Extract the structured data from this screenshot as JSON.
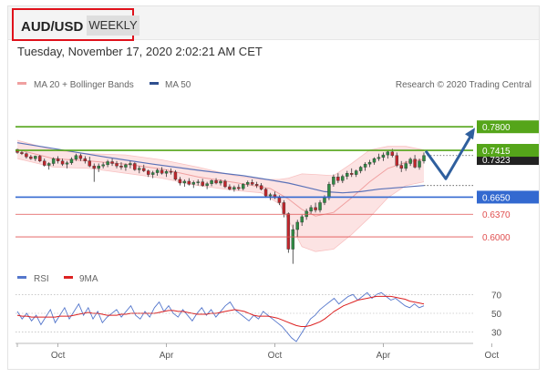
{
  "header": {
    "symbol": "AUD/USD",
    "timeframe": "WEEKLY"
  },
  "date_line": "Tuesday, November 17, 2020 2:02:21 AM CET",
  "legend": {
    "bollinger": "MA 20 + Bollinger Bands",
    "ma50": "MA 50",
    "rsi": "RSI",
    "ma9": "9MA"
  },
  "credit": "Research © 2020 Trading Central",
  "colors": {
    "bull": "#2f8a44",
    "bear": "#c0262c",
    "band": "#f8c2c2",
    "ma20": "#f0a0a0",
    "ma50": "#5b72b8",
    "green_level": "#55a51a",
    "blue_level": "#3369d0",
    "red_level": "#e05050",
    "arrow": "#2f5f9e",
    "rsi": "#5577cc",
    "ma9": "#dd2222"
  },
  "chart_data": [
    {
      "type": "candlestick",
      "title": "",
      "x_ticks": [
        "Oct",
        "Apr",
        "Oct",
        "Apr",
        "Oct"
      ],
      "ylim": [
        0.548,
        0.822
      ],
      "levels": [
        {
          "label": "0.7800",
          "value": 0.78,
          "kind": "resistance"
        },
        {
          "label": "0.7415",
          "value": 0.7415,
          "kind": "resistance"
        },
        {
          "label": "0.6650",
          "value": 0.665,
          "kind": "pivot"
        },
        {
          "label": "0.6370",
          "value": 0.637,
          "kind": "support"
        },
        {
          "label": "0.6000",
          "value": 0.6,
          "kind": "support"
        }
      ],
      "price_tag_partial": "0.7323",
      "scenario": "up from 0.7415 dip to 0.6950 then to 0.7800",
      "candles": [
        [
          0.743,
          0.744,
          0.736,
          0.738
        ],
        [
          0.738,
          0.742,
          0.734,
          0.736
        ],
        [
          0.736,
          0.738,
          0.728,
          0.731
        ],
        [
          0.731,
          0.734,
          0.726,
          0.728
        ],
        [
          0.728,
          0.733,
          0.724,
          0.732
        ],
        [
          0.732,
          0.734,
          0.722,
          0.724
        ],
        [
          0.724,
          0.728,
          0.715,
          0.717
        ],
        [
          0.717,
          0.722,
          0.71,
          0.72
        ],
        [
          0.72,
          0.73,
          0.716,
          0.728
        ],
        [
          0.728,
          0.732,
          0.72,
          0.724
        ],
        [
          0.724,
          0.728,
          0.716,
          0.719
        ],
        [
          0.719,
          0.724,
          0.712,
          0.721
        ],
        [
          0.721,
          0.73,
          0.718,
          0.727
        ],
        [
          0.727,
          0.736,
          0.724,
          0.733
        ],
        [
          0.733,
          0.736,
          0.724,
          0.728
        ],
        [
          0.728,
          0.732,
          0.72,
          0.724
        ],
        [
          0.724,
          0.731,
          0.714,
          0.716
        ],
        [
          0.716,
          0.72,
          0.69,
          0.712
        ],
        [
          0.712,
          0.72,
          0.706,
          0.716
        ],
        [
          0.716,
          0.722,
          0.712,
          0.718
        ],
        [
          0.718,
          0.726,
          0.714,
          0.723
        ],
        [
          0.723,
          0.728,
          0.716,
          0.72
        ],
        [
          0.72,
          0.724,
          0.712,
          0.716
        ],
        [
          0.716,
          0.722,
          0.71,
          0.714
        ],
        [
          0.714,
          0.72,
          0.708,
          0.718
        ],
        [
          0.718,
          0.724,
          0.712,
          0.72
        ],
        [
          0.72,
          0.722,
          0.708,
          0.71
        ],
        [
          0.71,
          0.716,
          0.704,
          0.712
        ],
        [
          0.712,
          0.718,
          0.706,
          0.708
        ],
        [
          0.708,
          0.71,
          0.698,
          0.702
        ],
        [
          0.702,
          0.708,
          0.696,
          0.705
        ],
        [
          0.705,
          0.712,
          0.7,
          0.709
        ],
        [
          0.709,
          0.714,
          0.702,
          0.704
        ],
        [
          0.704,
          0.71,
          0.698,
          0.707
        ],
        [
          0.707,
          0.712,
          0.702,
          0.706
        ],
        [
          0.706,
          0.709,
          0.692,
          0.694
        ],
        [
          0.694,
          0.698,
          0.684,
          0.688
        ],
        [
          0.688,
          0.694,
          0.682,
          0.691
        ],
        [
          0.691,
          0.696,
          0.684,
          0.686
        ],
        [
          0.686,
          0.692,
          0.68,
          0.689
        ],
        [
          0.689,
          0.694,
          0.684,
          0.69
        ],
        [
          0.69,
          0.695,
          0.682,
          0.684
        ],
        [
          0.684,
          0.69,
          0.678,
          0.687
        ],
        [
          0.687,
          0.694,
          0.683,
          0.692
        ],
        [
          0.692,
          0.696,
          0.686,
          0.688
        ],
        [
          0.688,
          0.694,
          0.684,
          0.691
        ],
        [
          0.691,
          0.694,
          0.68,
          0.682
        ],
        [
          0.682,
          0.686,
          0.676,
          0.678
        ],
        [
          0.678,
          0.684,
          0.674,
          0.681
        ],
        [
          0.681,
          0.686,
          0.676,
          0.679
        ],
        [
          0.679,
          0.688,
          0.676,
          0.686
        ],
        [
          0.686,
          0.692,
          0.682,
          0.689
        ],
        [
          0.689,
          0.694,
          0.684,
          0.686
        ],
        [
          0.686,
          0.69,
          0.68,
          0.684
        ],
        [
          0.684,
          0.688,
          0.676,
          0.678
        ],
        [
          0.678,
          0.68,
          0.664,
          0.667
        ],
        [
          0.667,
          0.672,
          0.66,
          0.669
        ],
        [
          0.669,
          0.674,
          0.662,
          0.664
        ],
        [
          0.664,
          0.668,
          0.652,
          0.656
        ],
        [
          0.656,
          0.66,
          0.632,
          0.638
        ],
        [
          0.638,
          0.64,
          0.574,
          0.58
        ],
        [
          0.58,
          0.62,
          0.556,
          0.612
        ],
        [
          0.612,
          0.628,
          0.6,
          0.624
        ],
        [
          0.624,
          0.636,
          0.618,
          0.633
        ],
        [
          0.633,
          0.646,
          0.628,
          0.642
        ],
        [
          0.642,
          0.652,
          0.638,
          0.648
        ],
        [
          0.648,
          0.656,
          0.64,
          0.644
        ],
        [
          0.644,
          0.66,
          0.64,
          0.656
        ],
        [
          0.656,
          0.668,
          0.652,
          0.664
        ],
        [
          0.664,
          0.69,
          0.66,
          0.686
        ],
        [
          0.686,
          0.702,
          0.682,
          0.698
        ],
        [
          0.698,
          0.704,
          0.688,
          0.692
        ],
        [
          0.692,
          0.702,
          0.688,
          0.699
        ],
        [
          0.699,
          0.708,
          0.694,
          0.704
        ],
        [
          0.704,
          0.712,
          0.698,
          0.702
        ],
        [
          0.702,
          0.71,
          0.698,
          0.708
        ],
        [
          0.708,
          0.716,
          0.704,
          0.714
        ],
        [
          0.714,
          0.722,
          0.708,
          0.719
        ],
        [
          0.719,
          0.726,
          0.714,
          0.722
        ],
        [
          0.722,
          0.73,
          0.718,
          0.728
        ],
        [
          0.728,
          0.736,
          0.724,
          0.73
        ],
        [
          0.73,
          0.738,
          0.724,
          0.734
        ],
        [
          0.734,
          0.742,
          0.728,
          0.739
        ],
        [
          0.739,
          0.744,
          0.73,
          0.733
        ],
        [
          0.733,
          0.738,
          0.714,
          0.717
        ],
        [
          0.717,
          0.724,
          0.706,
          0.712
        ],
        [
          0.712,
          0.724,
          0.708,
          0.72
        ],
        [
          0.72,
          0.73,
          0.716,
          0.727
        ],
        [
          0.727,
          0.734,
          0.712,
          0.714
        ],
        [
          0.714,
          0.728,
          0.71,
          0.724
        ],
        [
          0.724,
          0.738,
          0.72,
          0.733
        ]
      ],
      "ma20": [
        [
          0,
          0.743
        ],
        [
          8,
          0.728
        ],
        [
          16,
          0.724
        ],
        [
          24,
          0.719
        ],
        [
          32,
          0.711
        ],
        [
          40,
          0.698
        ],
        [
          48,
          0.689
        ],
        [
          56,
          0.679
        ],
        [
          60,
          0.662
        ],
        [
          63,
          0.645
        ],
        [
          66,
          0.634
        ],
        [
          70,
          0.64
        ],
        [
          74,
          0.664
        ],
        [
          78,
          0.69
        ],
        [
          82,
          0.712
        ],
        [
          86,
          0.722
        ],
        [
          90,
          0.727
        ]
      ],
      "ma50": [
        [
          0,
          0.754
        ],
        [
          10,
          0.742
        ],
        [
          20,
          0.73
        ],
        [
          30,
          0.719
        ],
        [
          40,
          0.709
        ],
        [
          50,
          0.7
        ],
        [
          56,
          0.693
        ],
        [
          60,
          0.688
        ],
        [
          64,
          0.681
        ],
        [
          68,
          0.674
        ],
        [
          72,
          0.672
        ],
        [
          76,
          0.674
        ],
        [
          80,
          0.678
        ],
        [
          85,
          0.681
        ],
        [
          90,
          0.684
        ]
      ],
      "bb_upper": [
        [
          0,
          0.758
        ],
        [
          8,
          0.742
        ],
        [
          16,
          0.736
        ],
        [
          24,
          0.734
        ],
        [
          32,
          0.726
        ],
        [
          40,
          0.714
        ],
        [
          48,
          0.7
        ],
        [
          54,
          0.694
        ],
        [
          58,
          0.694
        ],
        [
          60,
          0.696
        ],
        [
          63,
          0.703
        ],
        [
          66,
          0.702
        ],
        [
          70,
          0.7
        ],
        [
          74,
          0.72
        ],
        [
          78,
          0.742
        ],
        [
          82,
          0.748
        ],
        [
          86,
          0.748
        ],
        [
          90,
          0.742
        ]
      ],
      "bb_lower": [
        [
          0,
          0.728
        ],
        [
          8,
          0.714
        ],
        [
          16,
          0.712
        ],
        [
          24,
          0.704
        ],
        [
          32,
          0.696
        ],
        [
          40,
          0.684
        ],
        [
          48,
          0.676
        ],
        [
          54,
          0.672
        ],
        [
          58,
          0.654
        ],
        [
          60,
          0.628
        ],
        [
          63,
          0.584
        ],
        [
          66,
          0.576
        ],
        [
          70,
          0.58
        ],
        [
          74,
          0.604
        ],
        [
          78,
          0.632
        ],
        [
          82,
          0.664
        ],
        [
          86,
          0.684
        ],
        [
          90,
          0.69
        ]
      ]
    },
    {
      "type": "line",
      "title": "",
      "ylim": [
        20,
        80
      ],
      "y_ticks": [
        "70",
        "50",
        "30"
      ],
      "series": [
        {
          "name": "RSI",
          "values": [
            52,
            44,
            50,
            42,
            48,
            38,
            46,
            54,
            40,
            48,
            56,
            44,
            52,
            60,
            48,
            56,
            44,
            52,
            40,
            46,
            50,
            54,
            46,
            52,
            58,
            48,
            44,
            52,
            46,
            56,
            62,
            52,
            58,
            50,
            46,
            54,
            48,
            42,
            50,
            56,
            48,
            54,
            46,
            52,
            58,
            62,
            54,
            50,
            46,
            42,
            48,
            44,
            52,
            48,
            44,
            40,
            36,
            30,
            24,
            20,
            28,
            36,
            44,
            48,
            54,
            58,
            62,
            66,
            60,
            64,
            68,
            70,
            64,
            68,
            72,
            66,
            70,
            72,
            68,
            64,
            66,
            62,
            58,
            56,
            60,
            56,
            58
          ]
        },
        {
          "name": "9MA",
          "values": [
            48,
            47,
            47,
            46,
            46,
            46,
            46,
            46,
            46,
            47,
            47,
            47,
            48,
            49,
            50,
            51,
            50,
            50,
            49,
            48,
            48,
            48,
            49,
            49,
            50,
            50,
            50,
            50,
            50,
            50,
            51,
            52,
            53,
            53,
            52,
            52,
            51,
            50,
            49,
            49,
            49,
            50,
            50,
            51,
            52,
            53,
            54,
            53,
            52,
            50,
            48,
            47,
            47,
            47,
            46,
            45,
            43,
            41,
            39,
            37,
            36,
            36,
            37,
            39,
            41,
            44,
            48,
            52,
            55,
            58,
            60,
            62,
            64,
            65,
            66,
            67,
            68,
            68,
            68,
            68,
            67,
            66,
            65,
            63,
            62,
            61,
            60
          ]
        }
      ]
    }
  ]
}
